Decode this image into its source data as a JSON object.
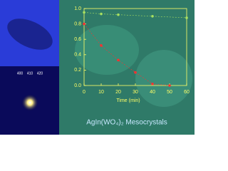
{
  "chart_data": {
    "type": "line",
    "title": "AgIn(WO₄)₂ Mesocrystals",
    "x_label": "Time (min)",
    "annotations": [
      "400",
      "410",
      "420"
    ],
    "xlim": [
      0,
      60
    ],
    "xticks": [
      0,
      10,
      20,
      30,
      40,
      50,
      60
    ],
    "ylim": [
      0,
      1.0
    ],
    "yticks": [
      {
        "value": 0,
        "label": "0.0"
      },
      0.2,
      0.4,
      0.6,
      0.8,
      {
        "value": 1.0,
        "label": "1.0"
      }
    ],
    "series": [
      {
        "color": "#ff3030",
        "x": [
          0,
          10,
          20,
          30,
          40,
          50
        ],
        "values": [
          0.8,
          0.52,
          0.33,
          0.17,
          0.02,
          0.0
        ]
      },
      {
        "color": "#a8e060",
        "x": [
          0,
          10,
          20,
          40,
          60
        ],
        "values": [
          0.95,
          0.93,
          0.92,
          0.9,
          0.88
        ]
      }
    ]
  }
}
